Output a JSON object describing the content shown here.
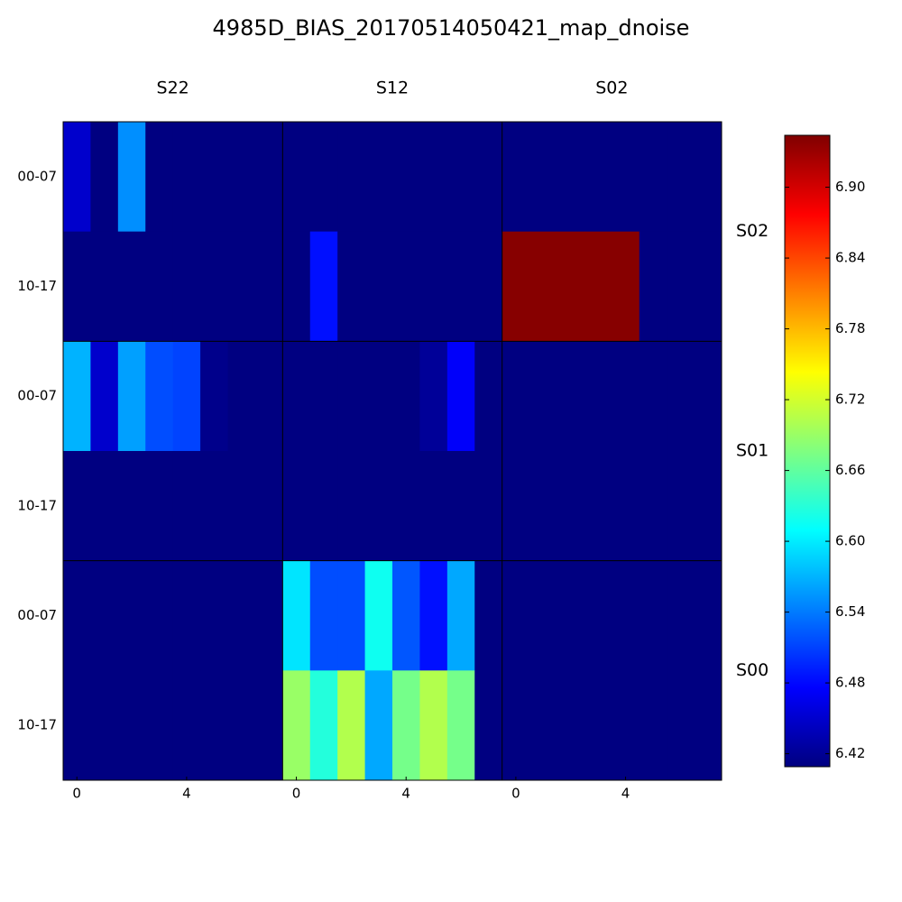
{
  "chart_data": {
    "type": "heatmap",
    "title": "4985D_BIAS_20170514050421_map_dnoise",
    "colormap": "jet",
    "column_groups": [
      "S22",
      "S12",
      "S02"
    ],
    "row_groups": [
      "S02",
      "S01",
      "S00"
    ],
    "row_labels": [
      "00-07",
      "10-17"
    ],
    "xticks": [
      0,
      4
    ],
    "clim": [
      6.409,
      6.944
    ],
    "cticks": [
      6.42,
      6.48,
      6.54,
      {
        "value": 6.6,
        "label": "6.60"
      },
      6.66,
      6.72,
      6.78,
      6.84,
      {
        "value": 6.9,
        "label": "6.90"
      }
    ],
    "z": [
      [
        6.449,
        6.41,
        6.551,
        6.41,
        6.41,
        6.41,
        6.41,
        6.41,
        6.41,
        6.41,
        6.41,
        6.41,
        6.41,
        6.41,
        6.41,
        6.41,
        6.41,
        6.41,
        6.41,
        6.41,
        6.41,
        6.41,
        6.41,
        6.41
      ],
      [
        6.41,
        6.41,
        6.41,
        6.41,
        6.41,
        6.41,
        6.41,
        6.41,
        6.41,
        6.484,
        6.41,
        6.41,
        6.41,
        6.41,
        6.41,
        6.41,
        6.94,
        6.94,
        6.94,
        6.94,
        6.94,
        6.41,
        6.41,
        6.41
      ],
      [
        6.57,
        6.449,
        6.56,
        6.516,
        6.511,
        6.415,
        6.41,
        6.41,
        6.41,
        6.41,
        6.41,
        6.41,
        6.41,
        6.422,
        6.473,
        6.41,
        6.41,
        6.41,
        6.41,
        6.41,
        6.41,
        6.41,
        6.41,
        6.41
      ],
      [
        6.41,
        6.41,
        6.41,
        6.41,
        6.41,
        6.41,
        6.41,
        6.41,
        6.41,
        6.41,
        6.41,
        6.41,
        6.41,
        6.41,
        6.41,
        6.41,
        6.41,
        6.41,
        6.41,
        6.41,
        6.41,
        6.41,
        6.41,
        6.41
      ],
      [
        6.41,
        6.41,
        6.41,
        6.41,
        6.41,
        6.41,
        6.41,
        6.41,
        6.596,
        6.516,
        6.516,
        6.617,
        6.521,
        6.484,
        6.564,
        6.41,
        6.41,
        6.41,
        6.41,
        6.41,
        6.41,
        6.41,
        6.41,
        6.41
      ],
      [
        6.41,
        6.41,
        6.41,
        6.41,
        6.41,
        6.41,
        6.41,
        6.41,
        6.69,
        6.628,
        6.703,
        6.564,
        6.671,
        6.703,
        6.671,
        6.41,
        6.41,
        6.41,
        6.41,
        6.41,
        6.41,
        6.41,
        6.41,
        6.41
      ]
    ]
  }
}
